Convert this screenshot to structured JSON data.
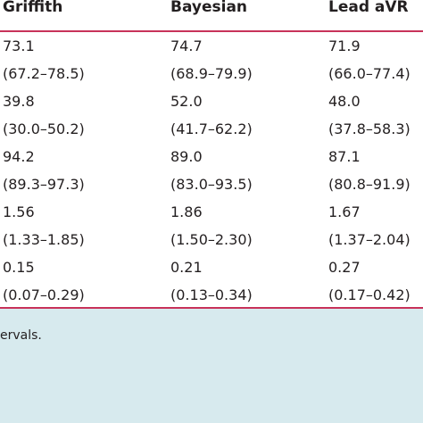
{
  "table": {
    "headers": [
      "Griffith",
      "Bayesian",
      "Lead aVR"
    ],
    "rows": [
      [
        "73.1",
        "74.7",
        "71.9"
      ],
      [
        "(67.2–78.5)",
        "(68.9–79.9)",
        "(66.0–77.4)"
      ],
      [
        "39.8",
        "52.0",
        "48.0"
      ],
      [
        "(30.0–50.2)",
        "(41.7–62.2)",
        "(37.8–58.3)"
      ],
      [
        "94.2",
        "89.0",
        "87.1"
      ],
      [
        "(89.3–97.3)",
        "(83.0–93.5)",
        "(80.8–91.9)"
      ],
      [
        "1.56",
        "1.86",
        "1.67"
      ],
      [
        "(1.33–1.85)",
        "(1.50–2.30)",
        "(1.37–2.04)"
      ],
      [
        "0.15",
        "0.21",
        "0.27"
      ],
      [
        "(0.07–0.29)",
        "(0.13–0.34)",
        "(0.17–0.42)"
      ]
    ]
  },
  "footnote": {
    "text": "ervals."
  },
  "colors": {
    "rule": "#c8325a",
    "footnote_background": "#d7eaee",
    "text": "#231f20"
  }
}
